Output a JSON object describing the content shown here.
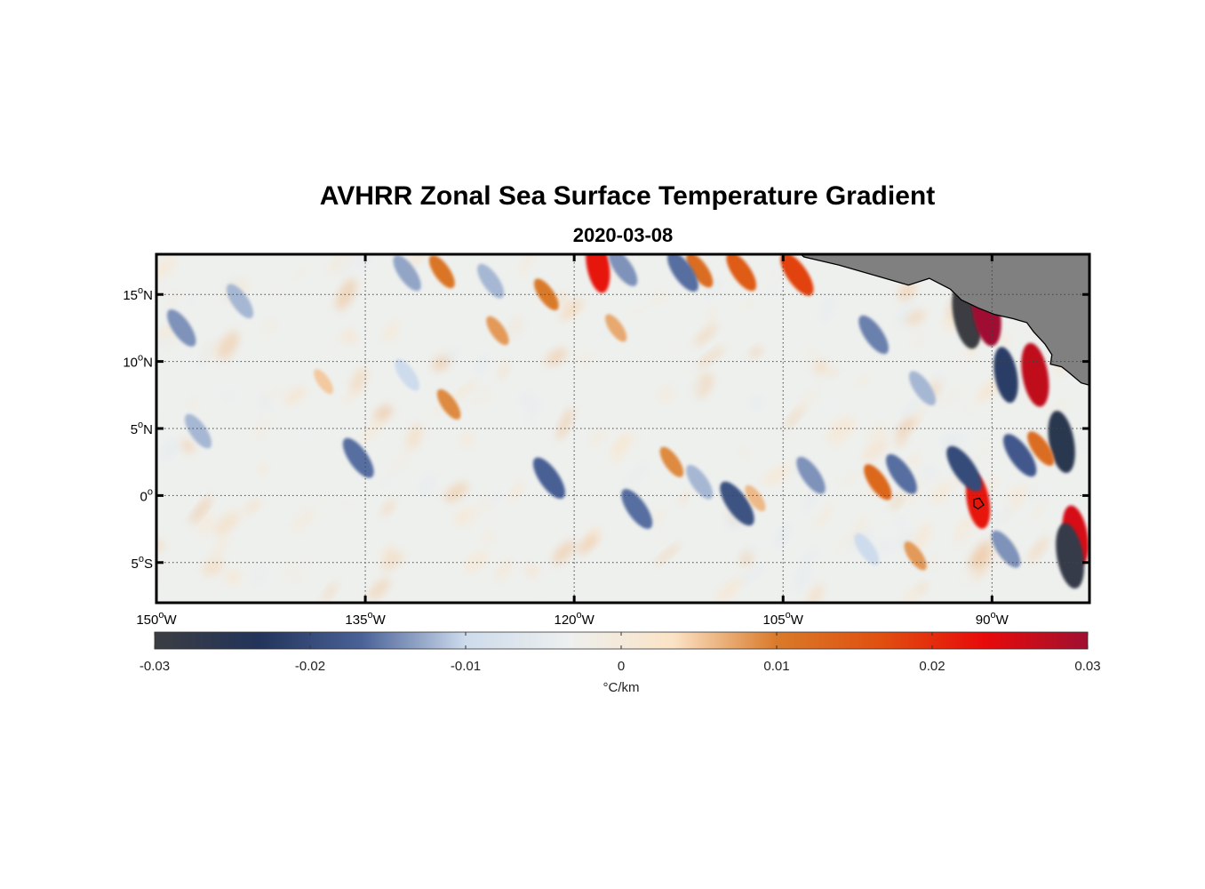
{
  "title": "AVHRR Zonal Sea Surface Temperature Gradient",
  "subtitle": "2020-03-08",
  "map": {
    "lon_range": [
      -150,
      -83
    ],
    "lat_range": [
      -8,
      18
    ],
    "gridlines": true,
    "land_color": "#808080",
    "lon_ticks": [
      {
        "value": -150,
        "label": "150",
        "suffix": "W"
      },
      {
        "value": -135,
        "label": "135",
        "suffix": "W"
      },
      {
        "value": -120,
        "label": "120",
        "suffix": "W"
      },
      {
        "value": -105,
        "label": "105",
        "suffix": "W"
      },
      {
        "value": -90,
        "label": "90",
        "suffix": "W"
      }
    ],
    "lat_ticks": [
      {
        "value": 15,
        "label": "15",
        "suffix": "N"
      },
      {
        "value": 10,
        "label": "10",
        "suffix": "N"
      },
      {
        "value": 5,
        "label": "5",
        "suffix": "N"
      },
      {
        "value": 0,
        "label": "0",
        "suffix": ""
      },
      {
        "value": -5,
        "label": "5",
        "suffix": "S"
      }
    ]
  },
  "colorbar": {
    "range": [
      -0.03,
      0.03
    ],
    "ticks": [
      {
        "value": -0.03,
        "label": "-0.03"
      },
      {
        "value": -0.02,
        "label": "-0.02"
      },
      {
        "value": -0.01,
        "label": "-0.01"
      },
      {
        "value": 0,
        "label": "0"
      },
      {
        "value": 0.01,
        "label": "0.01"
      },
      {
        "value": 0.02,
        "label": "0.02"
      },
      {
        "value": 0.03,
        "label": "0.03"
      }
    ],
    "label": "°C/km",
    "colors": [
      "#3b3d42",
      "#22345a",
      "#4a6298",
      "#cddbec",
      "#edf0ee",
      "#fbe3c6",
      "#d97a2a",
      "#e05010",
      "#e80a0a",
      "#a01030"
    ]
  },
  "features": [
    {
      "lon": -91.8,
      "lat": 13.5,
      "value": -0.03
    },
    {
      "lon": -90.4,
      "lat": 13.7,
      "value": 0.03
    },
    {
      "lon": -86.9,
      "lat": 9.0,
      "value": 0.027
    },
    {
      "lon": -89.0,
      "lat": 9.0,
      "value": -0.022
    },
    {
      "lon": -85.0,
      "lat": 4.0,
      "value": -0.026
    },
    {
      "lon": -84.0,
      "lat": -3.0,
      "value": 0.025
    },
    {
      "lon": -84.4,
      "lat": -4.5,
      "value": -0.028
    },
    {
      "lon": -91.0,
      "lat": -0.4,
      "value": 0.022
    },
    {
      "lon": -86.5,
      "lat": 3.5,
      "value": 0.012
    },
    {
      "lon": -88.0,
      "lat": 3.0,
      "value": -0.018
    },
    {
      "lon": -92.0,
      "lat": 2.0,
      "value": -0.02
    },
    {
      "lon": -98.2,
      "lat": 1.0,
      "value": 0.013
    },
    {
      "lon": -96.5,
      "lat": 1.6,
      "value": -0.016
    },
    {
      "lon": -103.0,
      "lat": 1.5,
      "value": -0.014
    },
    {
      "lon": -108.3,
      "lat": -0.6,
      "value": -0.019
    },
    {
      "lon": -111.0,
      "lat": 1.0,
      "value": -0.012
    },
    {
      "lon": -115.5,
      "lat": -1.0,
      "value": -0.016
    },
    {
      "lon": -121.8,
      "lat": 1.3,
      "value": -0.017
    },
    {
      "lon": -118.3,
      "lat": 17.2,
      "value": 0.022
    },
    {
      "lon": -116.5,
      "lat": 17.0,
      "value": -0.014
    },
    {
      "lon": -111.0,
      "lat": 16.8,
      "value": 0.012
    },
    {
      "lon": -108.0,
      "lat": 16.7,
      "value": 0.015
    },
    {
      "lon": -112.2,
      "lat": 16.7,
      "value": -0.016
    },
    {
      "lon": -104.0,
      "lat": 16.5,
      "value": 0.018
    },
    {
      "lon": -129.5,
      "lat": 16.7,
      "value": 0.011
    },
    {
      "lon": -132.0,
      "lat": 16.6,
      "value": -0.013
    },
    {
      "lon": -126.0,
      "lat": 16.0,
      "value": -0.012
    },
    {
      "lon": -148.2,
      "lat": 12.5,
      "value": -0.014
    },
    {
      "lon": -144.0,
      "lat": 14.5,
      "value": -0.012
    },
    {
      "lon": -132.0,
      "lat": 9.0,
      "value": -0.01
    },
    {
      "lon": -147.0,
      "lat": 4.8,
      "value": -0.012
    },
    {
      "lon": -135.5,
      "lat": 2.8,
      "value": -0.016
    },
    {
      "lon": -98.5,
      "lat": 12.0,
      "value": -0.015
    },
    {
      "lon": -95.0,
      "lat": 8.0,
      "value": -0.012
    },
    {
      "lon": -95.5,
      "lat": -4.5,
      "value": 0.008
    },
    {
      "lon": -129.0,
      "lat": 6.8,
      "value": 0.009
    },
    {
      "lon": -125.5,
      "lat": 12.3,
      "value": 0.008
    },
    {
      "lon": -122.0,
      "lat": 15.0,
      "value": 0.01
    },
    {
      "lon": -117.0,
      "lat": 12.5,
      "value": 0.007
    },
    {
      "lon": -107.0,
      "lat": -0.2,
      "value": 0.006
    },
    {
      "lon": -138.0,
      "lat": 8.5,
      "value": 0.005
    },
    {
      "lon": -113.0,
      "lat": 2.5,
      "value": 0.009
    },
    {
      "lon": -99.0,
      "lat": -4.0,
      "value": -0.01
    },
    {
      "lon": -89.0,
      "lat": -4.0,
      "value": -0.014
    }
  ]
}
